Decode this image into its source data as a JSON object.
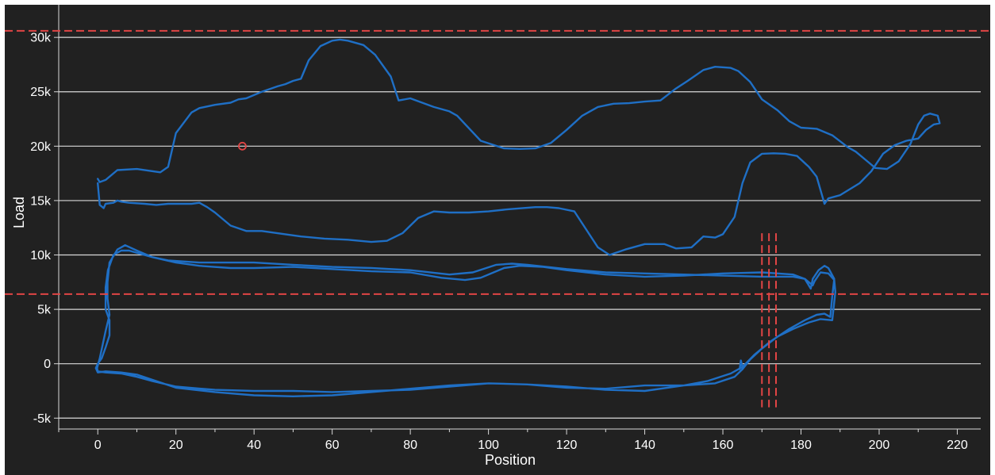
{
  "colors": {
    "background": "#212121",
    "grid": "#d9d9d9",
    "series": "#1f6fc5",
    "limit": "#e04545",
    "text": "#ffffff"
  },
  "chart_data": {
    "type": "line",
    "title": "",
    "xlabel": "Position",
    "ylabel": "Load",
    "xlim": [
      -10,
      226
    ],
    "ylim": [
      -6000,
      33000
    ],
    "grid": "horizontal",
    "x_ticks": [
      0,
      20,
      40,
      60,
      80,
      100,
      120,
      140,
      160,
      180,
      200,
      220
    ],
    "x_tick_labels": [
      "0",
      "20",
      "40",
      "60",
      "80",
      "100",
      "120",
      "140",
      "160",
      "180",
      "200",
      "220"
    ],
    "y_ticks": [
      -5000,
      0,
      5000,
      10000,
      15000,
      20000,
      25000,
      30000
    ],
    "y_tick_labels": [
      "-5k",
      "0",
      "5k",
      "10k",
      "15k",
      "20k",
      "25k",
      "30k"
    ],
    "limit_lines": [
      {
        "orientation": "horizontal",
        "y": 30600,
        "style": "dashed"
      },
      {
        "orientation": "horizontal",
        "y": 6400,
        "style": "dashed"
      },
      {
        "orientation": "vertical",
        "x": 170,
        "y_range": [
          -4000,
          12000
        ],
        "style": "dashed"
      },
      {
        "orientation": "vertical",
        "x": 171.8,
        "y_range": [
          -4000,
          12000
        ],
        "style": "dashed"
      },
      {
        "orientation": "vertical",
        "x": 173.6,
        "y_range": [
          -4000,
          12000
        ],
        "style": "dashed"
      }
    ],
    "markers": [
      {
        "x": 37,
        "y": 20000,
        "shape": "open-circle"
      }
    ],
    "series": [
      {
        "points": [
          [
            0,
            17000
          ],
          [
            0.5,
            16700
          ],
          [
            2,
            16900
          ],
          [
            5,
            17800
          ],
          [
            10,
            17900
          ],
          [
            16,
            17600
          ],
          [
            18,
            18100
          ],
          [
            20,
            21200
          ],
          [
            24,
            23100
          ],
          [
            26,
            23500
          ],
          [
            30,
            23800
          ],
          [
            34,
            24000
          ],
          [
            36,
            24300
          ],
          [
            38,
            24400
          ],
          [
            42,
            25000
          ],
          [
            46,
            25500
          ],
          [
            48,
            25700
          ],
          [
            50,
            26000
          ],
          [
            52,
            26200
          ],
          [
            54,
            27900
          ],
          [
            57,
            29200
          ],
          [
            60,
            29700
          ],
          [
            62,
            29800
          ],
          [
            64,
            29700
          ],
          [
            68,
            29300
          ],
          [
            71,
            28400
          ],
          [
            75,
            26400
          ],
          [
            77,
            24200
          ],
          [
            80,
            24400
          ],
          [
            86,
            23600
          ],
          [
            90,
            23200
          ],
          [
            92,
            22800
          ],
          [
            98,
            20500
          ],
          [
            104,
            19800
          ],
          [
            108,
            19750
          ],
          [
            112,
            19800
          ],
          [
            116,
            20300
          ],
          [
            120,
            21500
          ],
          [
            124,
            22800
          ],
          [
            128,
            23600
          ],
          [
            132,
            23900
          ],
          [
            136,
            23950
          ],
          [
            140,
            24100
          ],
          [
            144,
            24200
          ],
          [
            148,
            25300
          ],
          [
            151,
            26000
          ],
          [
            155,
            27000
          ],
          [
            158,
            27300
          ],
          [
            162,
            27200
          ],
          [
            164,
            26900
          ],
          [
            167,
            25900
          ],
          [
            170,
            24300
          ],
          [
            174,
            23300
          ],
          [
            177,
            22300
          ],
          [
            180,
            21700
          ],
          [
            184,
            21600
          ],
          [
            188,
            21000
          ],
          [
            192,
            19900
          ],
          [
            194,
            19500
          ],
          [
            197,
            18600
          ],
          [
            199,
            18000
          ],
          [
            202,
            17900
          ],
          [
            205,
            18600
          ],
          [
            208,
            20200
          ],
          [
            210,
            22000
          ],
          [
            211.5,
            22800
          ],
          [
            213,
            23000
          ],
          [
            215,
            22800
          ],
          [
            215.5,
            22100
          ],
          [
            214,
            22000
          ],
          [
            212,
            21500
          ],
          [
            210,
            20700
          ],
          [
            207,
            20500
          ],
          [
            204,
            20100
          ],
          [
            201,
            19300
          ],
          [
            198,
            17700
          ],
          [
            195,
            16600
          ],
          [
            190,
            15500
          ],
          [
            187,
            15200
          ],
          [
            186,
            14700
          ],
          [
            184,
            17200
          ],
          [
            182,
            18100
          ],
          [
            179,
            19100
          ],
          [
            176,
            19300
          ],
          [
            173,
            19350
          ],
          [
            170,
            19300
          ],
          [
            167,
            18500
          ],
          [
            165,
            16600
          ],
          [
            163,
            13500
          ],
          [
            160,
            11900
          ],
          [
            158,
            11600
          ],
          [
            155,
            11700
          ],
          [
            152,
            10700
          ],
          [
            148,
            10600
          ],
          [
            145,
            11000
          ],
          [
            140,
            11000
          ],
          [
            135,
            10500
          ],
          [
            131,
            10000
          ],
          [
            128,
            10700
          ],
          [
            122,
            14000
          ],
          [
            118,
            14300
          ],
          [
            115,
            14400
          ],
          [
            112,
            14400
          ],
          [
            105,
            14200
          ],
          [
            100,
            14000
          ],
          [
            95,
            13900
          ],
          [
            90,
            13900
          ],
          [
            86,
            14000
          ],
          [
            82,
            13400
          ],
          [
            78,
            12000
          ],
          [
            74,
            11300
          ],
          [
            70,
            11200
          ],
          [
            64,
            11400
          ],
          [
            58,
            11500
          ],
          [
            52,
            11700
          ],
          [
            46,
            12000
          ],
          [
            42,
            12200
          ],
          [
            38,
            12200
          ],
          [
            34,
            12700
          ],
          [
            30,
            13900
          ],
          [
            28,
            14400
          ],
          [
            26,
            14800
          ],
          [
            24,
            14700
          ],
          [
            22,
            14700
          ],
          [
            18,
            14700
          ],
          [
            15,
            14600
          ],
          [
            12,
            14700
          ],
          [
            8,
            14800
          ],
          [
            6,
            14900
          ],
          [
            5,
            15000
          ],
          [
            4,
            14800
          ],
          [
            2,
            14700
          ],
          [
            1.5,
            14300
          ],
          [
            0.5,
            14600
          ],
          [
            0,
            16600
          ]
        ]
      },
      {
        "points": [
          [
            -0.2,
            -400
          ],
          [
            0.5,
            500
          ],
          [
            2,
            3000
          ],
          [
            3,
            4500
          ],
          [
            2.5,
            6000
          ],
          [
            2.5,
            7500
          ],
          [
            3,
            9300
          ],
          [
            5,
            10500
          ],
          [
            7,
            10900
          ],
          [
            10,
            10400
          ],
          [
            14,
            9800
          ],
          [
            18,
            9500
          ],
          [
            26,
            9300
          ],
          [
            30,
            9300
          ],
          [
            40,
            9300
          ],
          [
            50,
            9100
          ],
          [
            60,
            8900
          ],
          [
            70,
            8800
          ],
          [
            80,
            8600
          ],
          [
            90,
            8200
          ],
          [
            96,
            8400
          ],
          [
            102,
            9100
          ],
          [
            106,
            9200
          ],
          [
            110,
            9100
          ],
          [
            120,
            8700
          ],
          [
            130,
            8400
          ],
          [
            140,
            8300
          ],
          [
            150,
            8200
          ],
          [
            160,
            8100
          ],
          [
            170,
            8000
          ],
          [
            178,
            8000
          ],
          [
            181,
            7800
          ],
          [
            182.5,
            6900
          ],
          [
            183,
            7800
          ],
          [
            184.5,
            8600
          ],
          [
            186,
            9000
          ],
          [
            187,
            8800
          ],
          [
            188.5,
            7800
          ],
          [
            188,
            6200
          ],
          [
            187.5,
            4300
          ],
          [
            186,
            4600
          ],
          [
            184,
            4500
          ],
          [
            181,
            4000
          ],
          [
            177,
            3200
          ],
          [
            172,
            2000
          ],
          [
            168,
            800
          ],
          [
            165,
            -300
          ],
          [
            162,
            -900
          ],
          [
            156,
            -1600
          ],
          [
            150,
            -2000
          ],
          [
            140,
            -2500
          ],
          [
            130,
            -2400
          ],
          [
            120,
            -2100
          ],
          [
            110,
            -1900
          ],
          [
            100,
            -1800
          ],
          [
            90,
            -2000
          ],
          [
            80,
            -2300
          ],
          [
            70,
            -2600
          ],
          [
            60,
            -2900
          ],
          [
            50,
            -3000
          ],
          [
            40,
            -2900
          ],
          [
            30,
            -2600
          ],
          [
            20,
            -2200
          ],
          [
            10,
            -1000
          ],
          [
            6,
            -800
          ],
          [
            2,
            -700
          ],
          [
            0,
            -800
          ],
          [
            -0.5,
            -400
          ],
          [
            0,
            0
          ],
          [
            1,
            500
          ],
          [
            2,
            1500
          ],
          [
            3,
            2600
          ],
          [
            3,
            4000
          ],
          [
            2,
            5000
          ],
          [
            2,
            7000
          ],
          [
            2.6,
            8600
          ],
          [
            4,
            10000
          ],
          [
            6,
            10400
          ],
          [
            8,
            10400
          ],
          [
            14,
            9800
          ],
          [
            20,
            9300
          ],
          [
            26,
            9000
          ],
          [
            34,
            8800
          ],
          [
            40,
            8800
          ],
          [
            50,
            8900
          ],
          [
            60,
            8700
          ],
          [
            70,
            8500
          ],
          [
            80,
            8400
          ],
          [
            88,
            7900
          ],
          [
            94,
            7700
          ],
          [
            98,
            7900
          ],
          [
            104,
            8800
          ],
          [
            108,
            9000
          ],
          [
            114,
            8900
          ],
          [
            120,
            8600
          ],
          [
            130,
            8200
          ],
          [
            140,
            8000
          ],
          [
            150,
            8100
          ],
          [
            160,
            8300
          ],
          [
            170,
            8400
          ],
          [
            178,
            8200
          ],
          [
            181,
            7800
          ],
          [
            183,
            7200
          ],
          [
            183.5,
            7600
          ],
          [
            185,
            8400
          ],
          [
            187,
            8300
          ],
          [
            188.5,
            7700
          ],
          [
            188.8,
            6600
          ],
          [
            188,
            4000
          ],
          [
            185,
            4100
          ],
          [
            182,
            3800
          ],
          [
            178,
            3200
          ],
          [
            174,
            2500
          ],
          [
            170,
            1400
          ],
          [
            167,
            400
          ],
          [
            165,
            -500
          ],
          [
            163,
            -1200
          ],
          [
            158,
            -1800
          ],
          [
            150,
            -2000
          ],
          [
            140,
            -2000
          ],
          [
            130,
            -2300
          ],
          [
            120,
            -2200
          ],
          [
            110,
            -1900
          ],
          [
            100,
            -1800
          ],
          [
            90,
            -2100
          ],
          [
            80,
            -2400
          ],
          [
            70,
            -2500
          ],
          [
            60,
            -2600
          ],
          [
            50,
            -2500
          ],
          [
            40,
            -2500
          ],
          [
            30,
            -2400
          ],
          [
            20,
            -2100
          ],
          [
            14,
            -1600
          ],
          [
            10,
            -1200
          ],
          [
            6,
            -900
          ],
          [
            2,
            -800
          ],
          [
            0,
            -700
          ],
          [
            -0.2,
            -400
          ]
        ]
      },
      {
        "points": [
          [
            164.3,
            -500
          ],
          [
            164.6,
            300
          ],
          [
            165,
            -300
          ]
        ]
      }
    ]
  }
}
